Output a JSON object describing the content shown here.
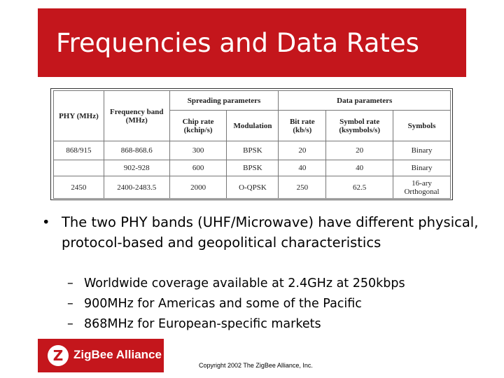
{
  "slide": {
    "title": "Frequencies and Data Rates",
    "bullet_main": "The two PHY bands (UHF/Microwave) have different physical, protocol-based and geopolitical characteristics",
    "sub_bullets": [
      "Worldwide coverage available at 2.4GHz at 250kbps",
      "900MHz for Americas and some of the Pacific",
      "868MHz for European-specific markets"
    ],
    "logo_text": "ZigBee Alliance",
    "logo_mark": "Z",
    "copyright": "Copyright 2002 The ZigBee Alliance, Inc."
  },
  "table": {
    "group_headers": {
      "spreading": "Spreading parameters",
      "data": "Data parameters"
    },
    "col_phy": "PHY (MHz)",
    "col_band": "Frequency band (MHz)",
    "col_chip": "Chip rate (kchip/s)",
    "col_mod": "Modulation",
    "col_bit": "Bit rate (kb/s)",
    "col_symrate": "Symbol rate (ksymbols/s)",
    "col_symbols": "Symbols",
    "rows": [
      {
        "phy": "868/915",
        "band": "868-868.6",
        "chip": "300",
        "mod": "BPSK",
        "bit": "20",
        "symrate": "20",
        "symbols": "Binary"
      },
      {
        "phy": "",
        "band": "902-928",
        "chip": "600",
        "mod": "BPSK",
        "bit": "40",
        "symrate": "40",
        "symbols": "Binary"
      },
      {
        "phy": "2450",
        "band": "2400-2483.5",
        "chip": "2000",
        "mod": "O-QPSK",
        "bit": "250",
        "symrate": "62.5",
        "symbols": "16-ary Orthogonal"
      }
    ]
  },
  "colors": {
    "brand_red": "#c4161c"
  }
}
